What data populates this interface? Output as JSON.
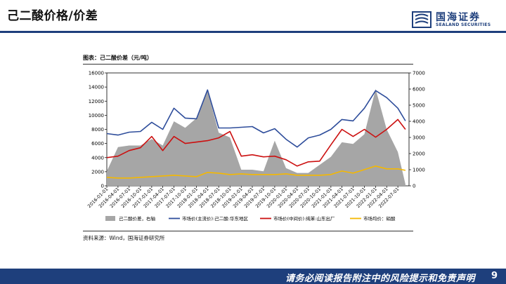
{
  "header": {
    "title": "己二酸价格/价差",
    "logo_name": "国海证券",
    "logo_en": "SEALAND SECURITIES"
  },
  "chart_title": "图表：己二酸价差（元/吨）",
  "source": "资料来源：Wind，国海证券研究所",
  "footer": {
    "disclaimer": "请务必阅读报告附注中的风险提示和免责声明",
    "page": "9"
  },
  "colors": {
    "brand": "#1e3f7c",
    "spread": "#a6a6a6",
    "price_east": "#2e4d9b",
    "price_intermediate": "#cc1010",
    "nitric": "#f5b800"
  },
  "chart_data": {
    "type": "line",
    "x_tick_labels": [
      "2016-01-01",
      "2016-04-01",
      "2016-07-01",
      "2016-10-01",
      "2017-01-01",
      "2017-04-01",
      "2017-07-01",
      "2017-10-01",
      "2018-01-01",
      "2018-04-01",
      "2018-07-01",
      "2018-10-01",
      "2019-01-01",
      "2019-04-01",
      "2019-07-01",
      "2019-10-01",
      "2020-01-01",
      "2020-04-01",
      "2020-07-01",
      "2020-10-01",
      "2021-01-01",
      "2021-04-01",
      "2021-07-01",
      "2021-10-01",
      "2022-01-01",
      "2022-04-01",
      "2022-07-01"
    ],
    "x": [
      "2016-01",
      "2016-04",
      "2016-07",
      "2016-10",
      "2017-01",
      "2017-04",
      "2017-07",
      "2017-10",
      "2018-01",
      "2018-04",
      "2018-07",
      "2018-10",
      "2019-01",
      "2019-04",
      "2019-07",
      "2019-10",
      "2020-01",
      "2020-04",
      "2020-07",
      "2020-10",
      "2021-01",
      "2021-04",
      "2021-07",
      "2021-10",
      "2022-01",
      "2022-04",
      "2022-07",
      "2022-09"
    ],
    "x_range": [
      "2016-01-01",
      "2022-09-30"
    ],
    "y_left": {
      "min": 0,
      "max": 16000,
      "ticks": [
        0,
        2000,
        4000,
        6000,
        8000,
        10000,
        12000,
        14000,
        16000
      ]
    },
    "y_right": {
      "min": 0,
      "max": 7000,
      "ticks": [
        0,
        1000,
        2000,
        3000,
        4000,
        5000,
        6000,
        7000
      ]
    },
    "legend_position": "bottom",
    "series": [
      {
        "name": "己二酸价差，右轴",
        "axis": "right",
        "style": "area",
        "values": [
          900,
          2400,
          2500,
          2500,
          2900,
          2500,
          4000,
          3600,
          4200,
          5900,
          3300,
          3000,
          1000,
          1000,
          900,
          2800,
          1100,
          800,
          800,
          1300,
          1800,
          2700,
          2600,
          3200,
          6000,
          3500,
          2100,
          100
        ]
      },
      {
        "name": "市场价(主流价):己二酸:华东地区",
        "axis": "left",
        "style": "line",
        "values": [
          7400,
          7200,
          7600,
          7700,
          9000,
          8000,
          11000,
          9600,
          9500,
          13600,
          8200,
          8200,
          8300,
          8400,
          7500,
          8100,
          6600,
          5500,
          6800,
          7200,
          8000,
          9400,
          9200,
          11000,
          13500,
          12500,
          11000,
          9200
        ]
      },
      {
        "name": "市场价(中间价):纯苯:山东出厂",
        "axis": "left",
        "style": "line",
        "values": [
          4000,
          4200,
          5000,
          5400,
          7000,
          5000,
          7000,
          6000,
          6200,
          6400,
          6800,
          7700,
          4200,
          4400,
          4100,
          4200,
          3700,
          2800,
          3400,
          3500,
          5800,
          8000,
          7000,
          8000,
          6900,
          8000,
          9400,
          8000
        ]
      },
      {
        "name": "市场均价：硝酸",
        "axis": "left",
        "style": "line",
        "values": [
          1200,
          1100,
          1100,
          1200,
          1300,
          1400,
          1500,
          1400,
          1300,
          1900,
          1800,
          1600,
          1700,
          1600,
          1600,
          1600,
          1700,
          1500,
          1500,
          1500,
          1600,
          2100,
          1800,
          2300,
          2800,
          2400,
          2400,
          2200
        ]
      }
    ]
  }
}
